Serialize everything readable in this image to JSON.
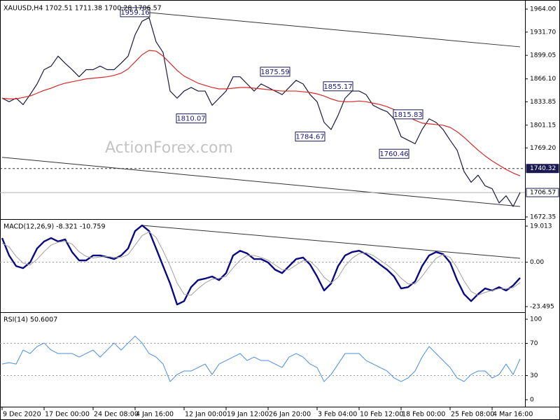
{
  "chart_data": [
    {
      "type": "line",
      "title": "XAUUSD,H4  1702.51 1711.38 1700.28 1706.57",
      "watermark": "ActionForex.com",
      "categories": [
        "9 Dec 2020",
        null,
        null,
        null,
        null,
        null,
        "17 Dec 00:00",
        null,
        null,
        null,
        null,
        null,
        null,
        "24 Dec 08:00",
        null,
        null,
        null,
        null,
        null,
        "4 Jan 16:00",
        null,
        null,
        null,
        null,
        null,
        null,
        "12 Jan 00:00",
        null,
        null,
        null,
        null,
        null,
        "19 Jan 12:00",
        null,
        null,
        null,
        null,
        null,
        "26 Jan 20:00",
        null,
        null,
        null,
        null,
        null,
        null,
        "3 Feb 04:00",
        null,
        null,
        null,
        null,
        null,
        "10 Feb 12:00",
        null,
        null,
        null,
        null,
        null,
        "18 Feb 00:00",
        null,
        null,
        null,
        null,
        null,
        null,
        "25 Feb 08:00",
        null,
        null,
        null,
        null,
        null,
        "4 Mar 16:00",
        null,
        null,
        null,
        null
      ],
      "series": [
        {
          "color": "#1a1a40",
          "width": 1.2,
          "values": [
            1839,
            1834,
            1839,
            1830,
            1844,
            1859,
            1879,
            1884,
            1898,
            1888,
            1879,
            1869,
            1879,
            1879,
            1884,
            1879,
            1879,
            1888,
            1898,
            1928,
            1947,
            1952,
            1918,
            1903,
            1849,
            1839,
            1849,
            1854,
            1849,
            1849,
            1829,
            1839,
            1849,
            1869,
            1869,
            1859,
            1849,
            1859,
            1854,
            1849,
            1844,
            1854,
            1864,
            1859,
            1844,
            1834,
            1805,
            1795,
            1815,
            1839,
            1849,
            1849,
            1844,
            1829,
            1824,
            1820,
            1810,
            1785,
            1780,
            1775,
            1795,
            1810,
            1805,
            1795,
            1780,
            1766,
            1736,
            1721,
            1731,
            1716,
            1712,
            1692,
            1702,
            1687,
            1706.57
          ]
        },
        {
          "color": "#d42a2a",
          "width": 1.2,
          "values": [
            1839,
            1838,
            1838,
            1840,
            1842,
            1846,
            1850,
            1853,
            1857,
            1860,
            1862,
            1864,
            1866,
            1867,
            1868,
            1869,
            1871,
            1874,
            1880,
            1890,
            1900,
            1906,
            1905,
            1898,
            1888,
            1878,
            1870,
            1865,
            1860,
            1857,
            1854,
            1852,
            1852,
            1853,
            1854,
            1854,
            1853,
            1852,
            1851,
            1850,
            1849,
            1849,
            1849,
            1848,
            1847,
            1845,
            1842,
            1838,
            1835,
            1834,
            1834,
            1835,
            1834,
            1832,
            1830,
            1827,
            1823,
            1818,
            1813,
            1808,
            1804,
            1803,
            1802,
            1801,
            1798,
            1792,
            1784,
            1775,
            1766,
            1758,
            1751,
            1745,
            1739,
            1734,
            1730
          ]
        }
      ],
      "ylim": [
        1670.3,
        1973.8
      ],
      "yticks": [
        {
          "value": 1964,
          "label": "1964.00"
        },
        {
          "value": 1931.7,
          "label": "1931.70"
        },
        1899.05,
        {
          "value": 1866.1,
          "label": "1866.10"
        },
        1833.85,
        1801.15,
        {
          "value": 1769.2,
          "label": "1769.20"
        },
        1672.35
      ],
      "hlines": [
        {
          "value": 1740.32,
          "dashed": true,
          "color": "#333333",
          "box_fill": "#1a1a50",
          "box_text": "#ffffff"
        },
        {
          "value": 1706.57,
          "dashed": false,
          "color": "#b0b0b0",
          "box_fill": "#ffffff",
          "box_text": "#000000"
        }
      ],
      "trendlines": [
        {
          "from": [
            20,
            1960
          ],
          "to": [
            74,
            1911
          ]
        },
        {
          "from": [
            0,
            1756
          ],
          "to": [
            74,
            1687
          ]
        }
      ],
      "annotations": [
        {
          "i": 19,
          "value": 1959.16
        },
        {
          "i": 27,
          "value": 1810.07
        },
        {
          "i": 39,
          "value": 1875.59
        },
        {
          "i": 48,
          "value": 1855.17
        },
        {
          "i": 44,
          "value": 1784.67
        },
        {
          "i": 58,
          "value": 1815.83
        },
        {
          "i": 56,
          "value": 1760.46
        }
      ]
    },
    {
      "type": "line",
      "title": "MACD(12,26,9) -8.321 -10.759",
      "series": [
        {
          "color": "#0a0a80",
          "width": 2.4,
          "values": [
            12.7,
            3.5,
            -2.1,
            -3.2,
            -0.2,
            7.2,
            10.9,
            12.7,
            10.9,
            12.0,
            5.3,
            0.9,
            0.9,
            3.5,
            3.5,
            2.7,
            1.6,
            3.5,
            7.2,
            16.4,
            19.4,
            16.4,
            7.2,
            -2.1,
            -11.3,
            -22.4,
            -20.6,
            -13.2,
            -9.5,
            -8.7,
            -7.6,
            -9.5,
            -5.8,
            3.5,
            6.0,
            4.6,
            1.6,
            1.6,
            -0.2,
            -4.0,
            -5.8,
            -2.1,
            1.6,
            2.4,
            -1.3,
            -7.6,
            -15.0,
            -11.3,
            -2.1,
            3.5,
            5.3,
            6.0,
            4.2,
            1.6,
            -1.3,
            -4.0,
            -7.6,
            -13.9,
            -13.2,
            -10.2,
            -2.1,
            3.5,
            5.3,
            4.2,
            -0.2,
            -9.5,
            -16.9,
            -20.6,
            -16.9,
            -13.9,
            -15.0,
            -13.2,
            -15.0,
            -12.4,
            -8.321
          ]
        },
        {
          "color": "#a0a0a0",
          "width": 1,
          "values": [
            10.0,
            8.0,
            3.0,
            -0.5,
            -1.5,
            1.5,
            5.5,
            9.0,
            10.5,
            11.0,
            9.5,
            5.5,
            3.0,
            2.2,
            2.7,
            3.0,
            2.5,
            2.5,
            4.0,
            9.0,
            14.0,
            16.0,
            13.0,
            6.0,
            -2.0,
            -11.0,
            -17.0,
            -17.5,
            -14.0,
            -11.0,
            -9.0,
            -8.5,
            -7.5,
            -3.0,
            1.0,
            3.5,
            3.5,
            2.5,
            1.0,
            -1.5,
            -4.0,
            -4.0,
            -1.5,
            0.8,
            0.5,
            -3.0,
            -8.0,
            -11.0,
            -8.0,
            -2.0,
            2.0,
            4.5,
            5.0,
            3.5,
            1.0,
            -1.5,
            -4.5,
            -8.5,
            -11.5,
            -11.5,
            -7.5,
            -2.5,
            2.0,
            4.0,
            2.5,
            -3.0,
            -10.0,
            -15.5,
            -17.5,
            -16.0,
            -15.0,
            -14.0,
            -14.0,
            -13.5,
            -10.759
          ]
        }
      ],
      "ylim": [
        -25.34,
        21.97
      ],
      "yticks": [
        19.013,
        {
          "value": 0,
          "label": "0.00"
        },
        -23.495
      ],
      "levels": [
        0
      ],
      "trendlines": [
        {
          "from": [
            20,
            19.4
          ],
          "to": [
            74,
            2.0
          ]
        }
      ]
    },
    {
      "type": "line",
      "title": "RSI(14) 50.6007",
      "series": [
        {
          "color": "#4a8fe0",
          "width": 1,
          "values": [
            44.3,
            46.1,
            44.3,
            61.7,
            57.4,
            66.1,
            70.4,
            61.7,
            57.4,
            57.4,
            57.4,
            53.0,
            57.4,
            61.7,
            53.0,
            61.7,
            70.4,
            61.7,
            70.4,
            79.1,
            70.4,
            57.4,
            53.0,
            44.3,
            22.6,
            31.3,
            35.7,
            35.7,
            40.0,
            44.3,
            31.3,
            44.3,
            48.7,
            53.0,
            57.4,
            48.7,
            53.0,
            48.7,
            48.7,
            44.3,
            40.0,
            53.0,
            57.4,
            53.0,
            44.3,
            40.0,
            22.6,
            31.3,
            44.3,
            57.4,
            57.4,
            57.4,
            48.7,
            44.3,
            40.0,
            35.7,
            27.0,
            22.6,
            27.0,
            35.7,
            53.0,
            66.1,
            57.4,
            48.7,
            40.0,
            27.0,
            22.6,
            31.3,
            35.7,
            35.7,
            27.0,
            31.3,
            44.3,
            31.3,
            50.6007
          ]
        }
      ],
      "ylim": [
        -7.8,
        107
      ],
      "yticks": [
        100,
        70,
        30,
        0
      ],
      "levels": [
        70,
        30
      ]
    }
  ]
}
